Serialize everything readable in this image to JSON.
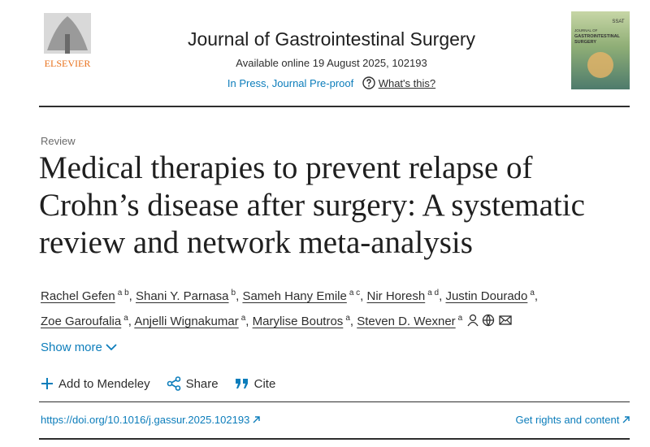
{
  "header": {
    "publisher": "ELSEVIER",
    "journal": "Journal of Gastrointestinal Surgery",
    "available": "Available online 19 August 2025, 102193",
    "status": "In Press, Journal Pre-proof",
    "help": "What's this?",
    "cover": {
      "society": "SSAT",
      "line1": "JOURNAL OF",
      "line2": "GASTROINTESTINAL",
      "line3": "SURGERY"
    }
  },
  "article": {
    "type": "Review",
    "title": "Medical therapies to prevent relapse of Crohn’s disease after surgery: A systematic review and network meta-analysis",
    "separator": ",",
    "authors": [
      {
        "name": "Rachel Gefen",
        "affiliations": "a b"
      },
      {
        "name": "Shani Y. Parnasa",
        "affiliations": "b"
      },
      {
        "name": "Sameh Hany Emile",
        "affiliations": "a c"
      },
      {
        "name": "Nir Horesh",
        "affiliations": "a d"
      },
      {
        "name": "Justin Dourado",
        "affiliations": "a"
      },
      {
        "name": "Zoe Garoufalia",
        "affiliations": "a"
      },
      {
        "name": "Anjelli Wignakumar",
        "affiliations": "a"
      },
      {
        "name": "Marylise Boutros",
        "affiliations": "a"
      },
      {
        "name": "Steven D. Wexner",
        "affiliations": "a"
      }
    ],
    "show_more": "Show more"
  },
  "actions": [
    "Add to Mendeley",
    "Share",
    "Cite"
  ],
  "links": {
    "doi": "https://doi.org/10.1016/j.gassur.2025.102193",
    "rights": "Get rights and content"
  }
}
